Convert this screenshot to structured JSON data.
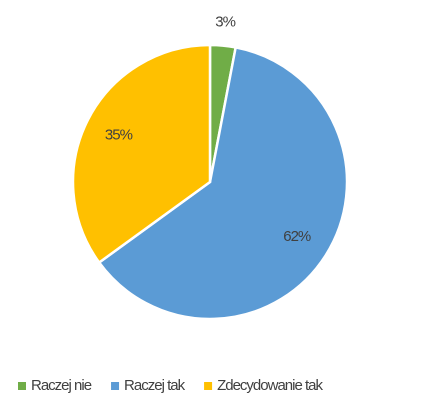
{
  "chart_data": {
    "type": "pie",
    "categories": [
      "Raczej nie",
      "Raczej tak",
      "Zdecydowanie tak"
    ],
    "values": [
      3,
      62,
      35
    ],
    "value_labels": [
      "3%",
      "62%",
      "35%"
    ],
    "colors": [
      "#70ad47",
      "#5b9bd5",
      "#ffc000"
    ],
    "legend": "bottom"
  }
}
